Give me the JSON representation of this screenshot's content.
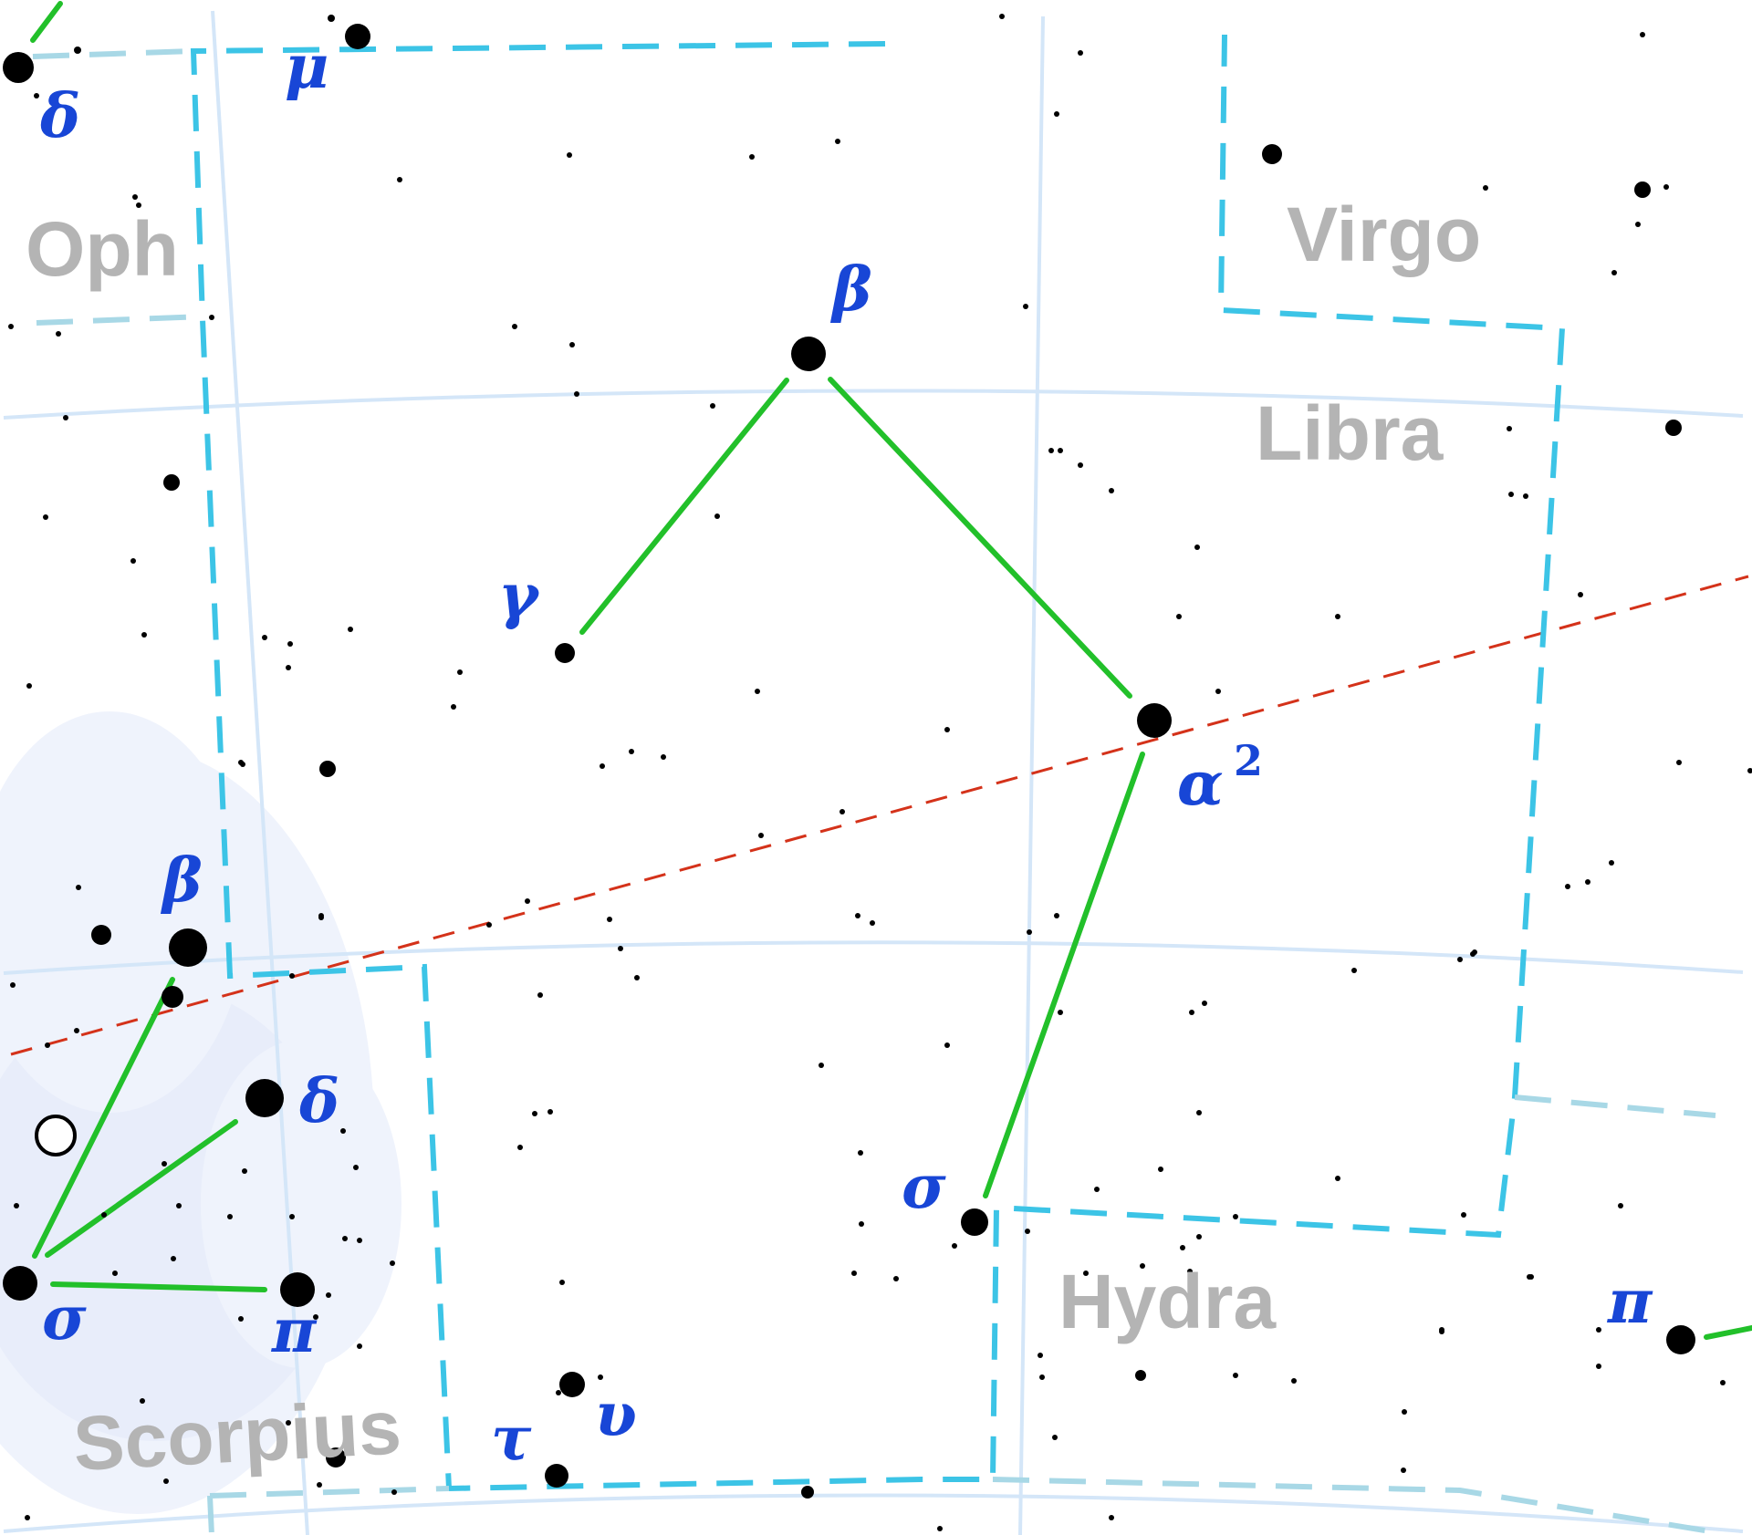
{
  "colors": {
    "grid": "#d4e6f8",
    "boundary": "#3cc4e6",
    "boundary_faint": "#a8d8e6",
    "ecliptic": "#d4321a",
    "asterism": "#22c02a",
    "greek": "#1846d6",
    "constellation": "#b4b4b4",
    "star": "#000000",
    "milky_way": "#e6ecfa"
  },
  "constellations": {
    "oph": "Oph",
    "virgo": "Virgo",
    "libra": "Libra",
    "hydra": "Hydra",
    "scorpius": "Scorpius"
  },
  "stars": {
    "oph_delta": "δ",
    "oph_mu": "μ",
    "lib_beta": "β",
    "lib_gamma": "γ",
    "lib_alpha": "α",
    "lib_alpha_sup": "2",
    "lib_sigma": "σ",
    "lib_tau": "τ",
    "lib_upsilon": "υ",
    "sco_beta": "β",
    "sco_delta": "δ",
    "sco_sigma": "σ",
    "sco_pi": "π",
    "hya_pi": "π"
  }
}
